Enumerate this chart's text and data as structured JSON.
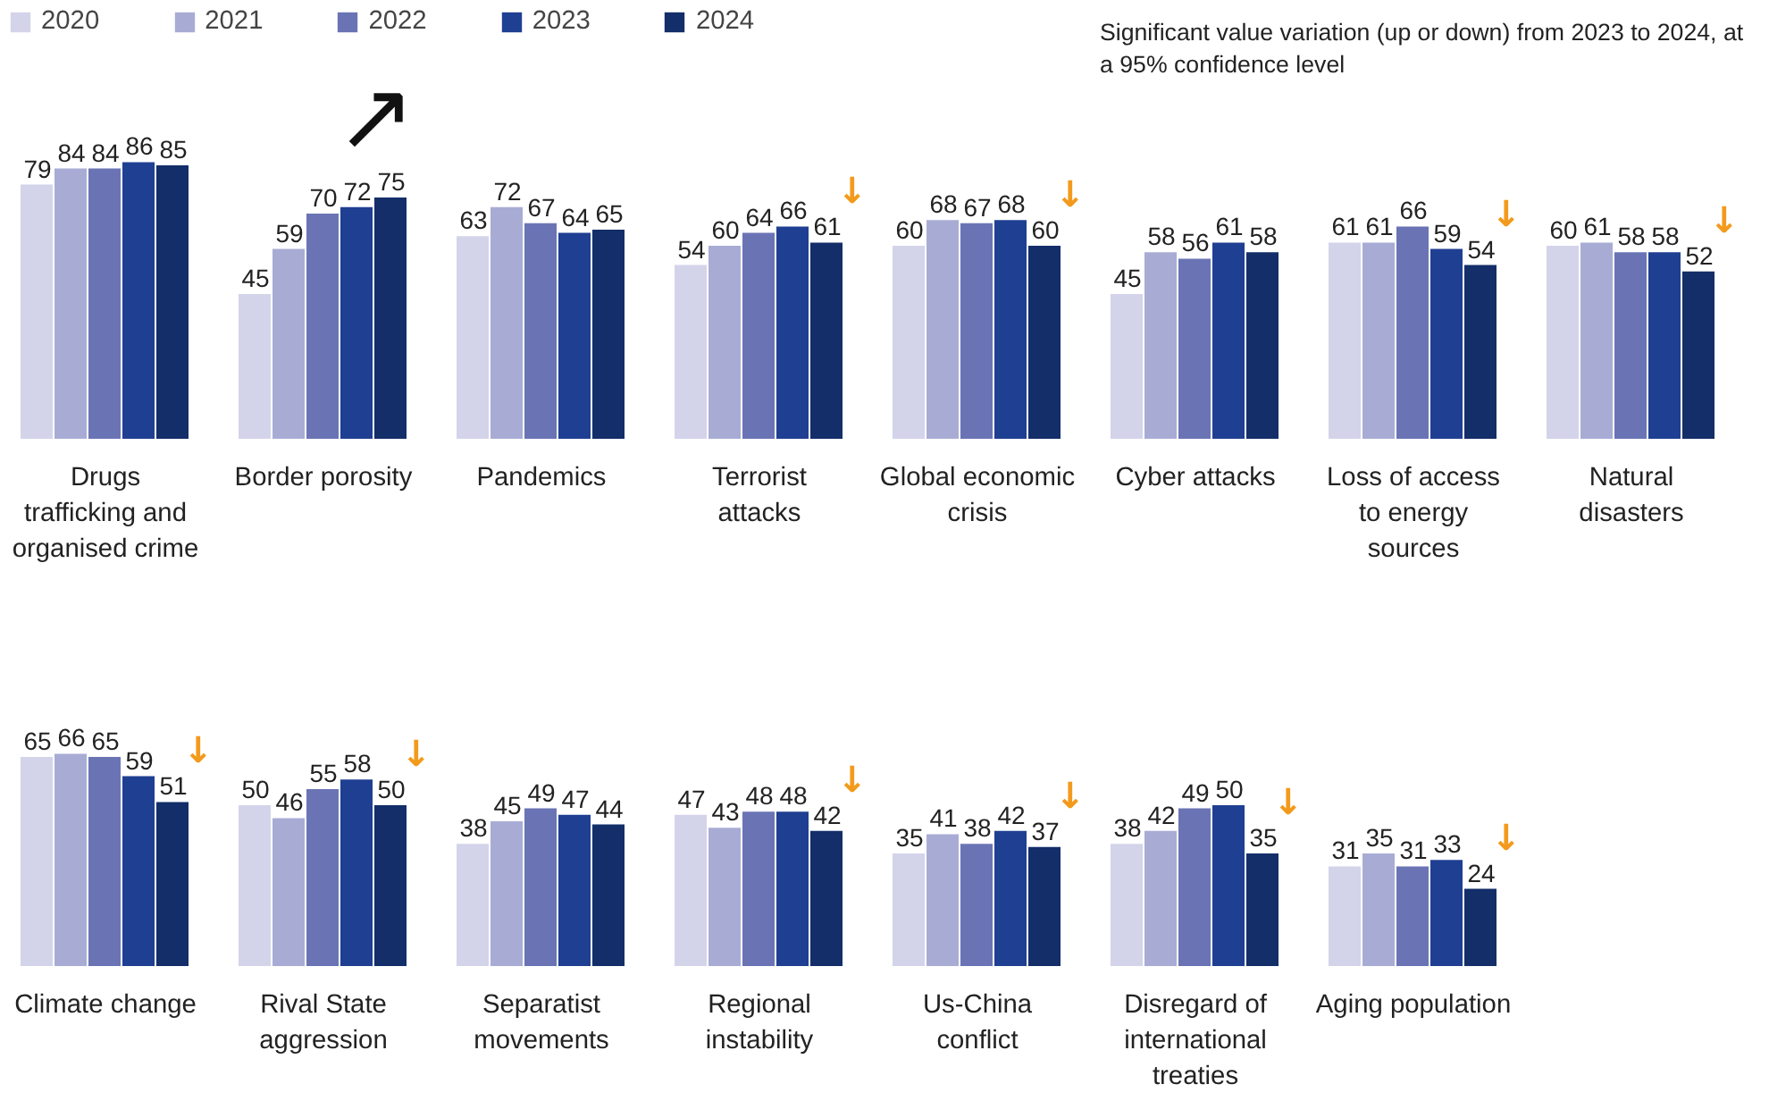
{
  "chart_data": [
    {
      "type": "bar",
      "categories": [
        "Drugs trafficking and organised crime",
        "Border porosity",
        "Pandemics",
        "Terrorist attacks",
        "Global economic crisis",
        "Cyber attacks",
        "Loss of access to energy sources",
        "Natural disasters"
      ],
      "series": [
        {
          "name": "2020",
          "color": "#d3d4ea",
          "values": [
            79,
            45,
            63,
            54,
            60,
            45,
            61,
            60
          ]
        },
        {
          "name": "2021",
          "color": "#a8acd5",
          "values": [
            84,
            59,
            72,
            60,
            68,
            58,
            61,
            61
          ]
        },
        {
          "name": "2022",
          "color": "#6a74b5",
          "values": [
            84,
            70,
            67,
            64,
            67,
            56,
            66,
            58
          ]
        },
        {
          "name": "2023",
          "color": "#1f3f92",
          "values": [
            86,
            72,
            64,
            66,
            68,
            61,
            59,
            58
          ]
        },
        {
          "name": "2024",
          "color": "#132e69",
          "values": [
            85,
            75,
            65,
            61,
            60,
            58,
            54,
            52
          ]
        }
      ],
      "data_labels": true,
      "legend": "top left",
      "annotations": [
        "Significant value variation (up or down) from 2023 to 2024, at a 95% confidence level",
        "↗",
        "↓",
        "↓",
        "↓",
        "↓"
      ]
    },
    {
      "type": "bar",
      "categories": [
        "Climate change",
        "Rival State aggression",
        "Separatist movements",
        "Regional instability",
        "Us-China conflict",
        "Disregard of international treaties",
        "Aging population"
      ],
      "series": [
        {
          "color": "#d3d4ea",
          "values": [
            65,
            50,
            38,
            47,
            35,
            38,
            31
          ]
        },
        {
          "color": "#a8acd5",
          "values": [
            66,
            46,
            45,
            43,
            41,
            42,
            35
          ]
        },
        {
          "color": "#6a74b5",
          "values": [
            65,
            55,
            49,
            48,
            38,
            49,
            31
          ]
        },
        {
          "color": "#1f3f92",
          "values": [
            59,
            58,
            47,
            48,
            42,
            50,
            33
          ]
        },
        {
          "color": "#132e69",
          "values": [
            51,
            50,
            44,
            42,
            37,
            35,
            24
          ]
        }
      ],
      "data_labels": true,
      "annotations": [
        "↓",
        "↓",
        "↓",
        "↓",
        "↓",
        "↓"
      ]
    }
  ]
}
